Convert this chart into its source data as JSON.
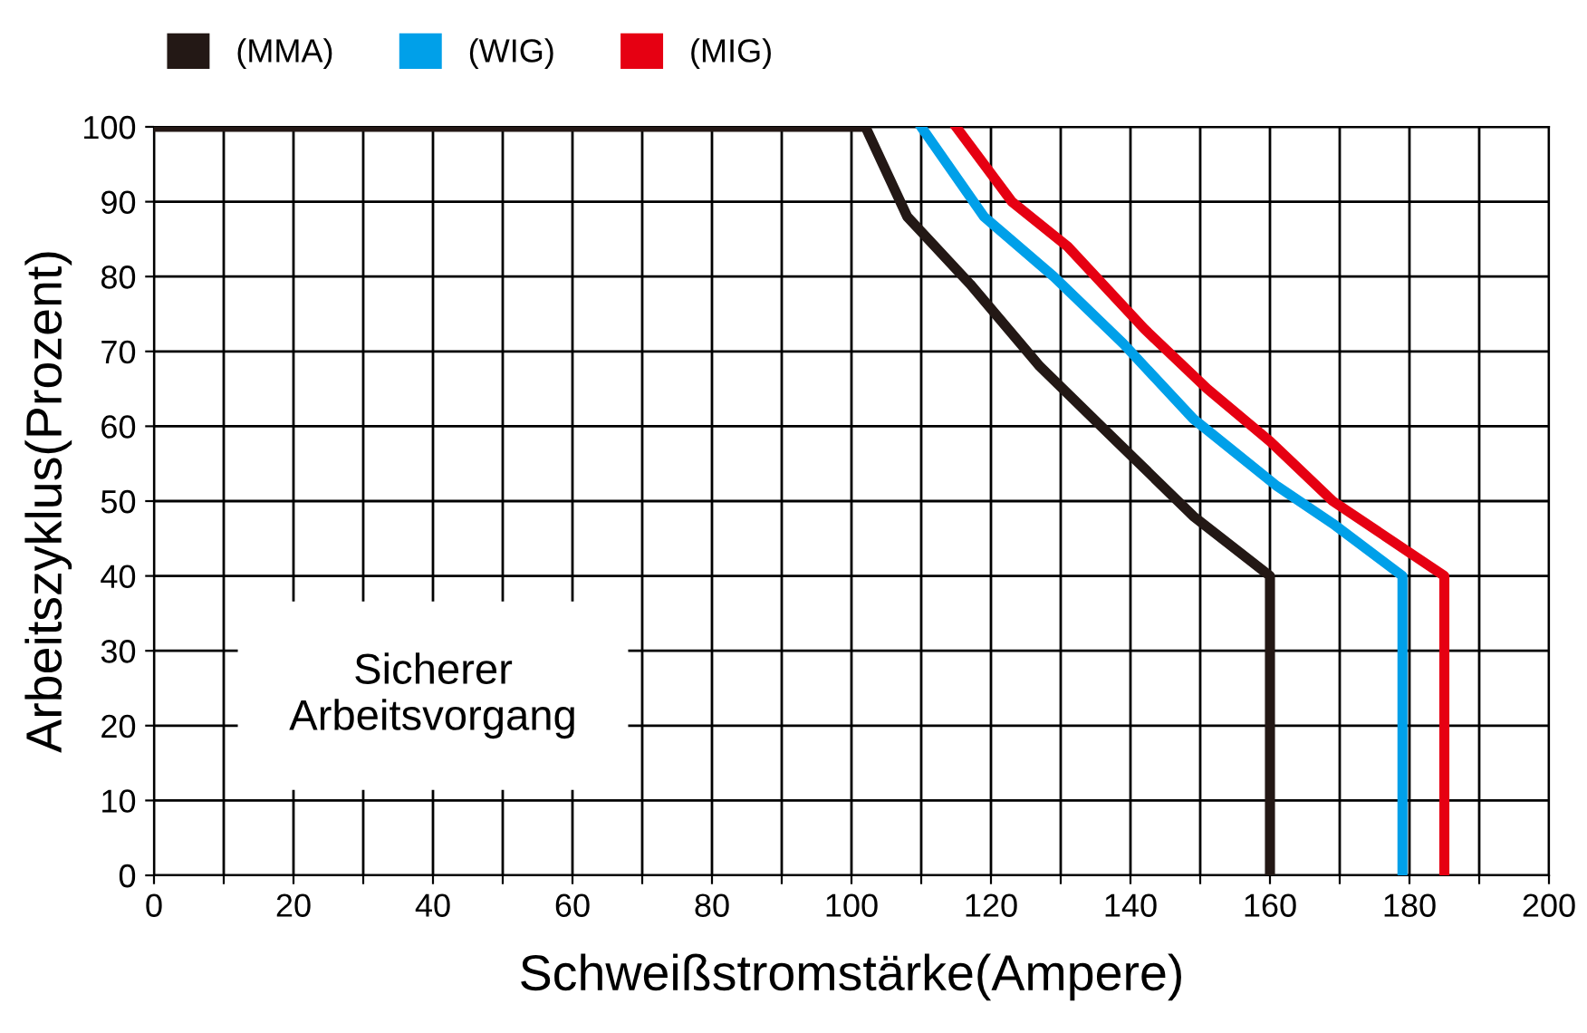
{
  "chart_data": {
    "type": "line",
    "xlabel": "Schweißstromstärke(Ampere)",
    "ylabel": "Arbeitszyklus(Prozent)",
    "xlim": [
      0,
      200
    ],
    "ylim": [
      0,
      100
    ],
    "xticks": [
      0,
      {
        "value": 10,
        "label": null
      },
      20,
      {
        "value": 30,
        "label": null
      },
      40,
      {
        "value": 50,
        "label": null
      },
      60,
      {
        "value": 70,
        "label": null
      },
      80,
      {
        "value": 90,
        "label": null
      },
      100,
      {
        "value": 110,
        "label": null
      },
      120,
      {
        "value": 130,
        "label": null
      },
      140,
      {
        "value": 150,
        "label": null
      },
      160,
      {
        "value": 170,
        "label": null
      },
      180,
      {
        "value": 190,
        "label": null
      },
      200
    ],
    "yticks": [
      0,
      10,
      20,
      30,
      40,
      50,
      60,
      70,
      80,
      90,
      100
    ],
    "grid": true,
    "legend": "top left",
    "marker": "none",
    "line_style": "solid",
    "annotations": [
      "Sicherer\nArbeitsvorgang"
    ],
    "series": [
      {
        "name": "(MMA)",
        "color": "#231815",
        "x": [
          0,
          102,
          108,
          117,
          127,
          138,
          149,
          160,
          160
        ],
        "values": [
          100,
          100,
          88,
          79,
          68,
          58,
          48,
          40,
          0
        ]
      },
      {
        "name": "(WIG)",
        "color": "#00a0e9",
        "x": [
          110,
          119,
          129,
          139,
          149,
          161,
          169,
          179,
          179
        ],
        "values": [
          100,
          88,
          80,
          71,
          61,
          52,
          47,
          40,
          0
        ]
      },
      {
        "name": "(MIG)",
        "color": "#e60012",
        "x": [
          115,
          123,
          131,
          142,
          151,
          160,
          169,
          185,
          185
        ],
        "values": [
          100,
          90,
          84,
          73,
          65,
          58,
          50,
          40,
          0
        ]
      }
    ]
  }
}
